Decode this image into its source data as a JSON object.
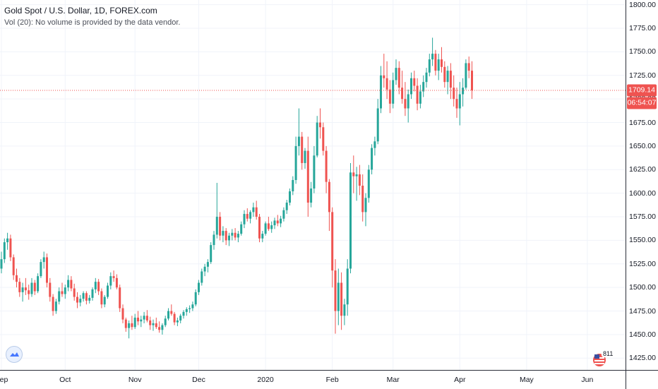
{
  "legend": {
    "title": "Gold Spot / U.S. Dollar, 1D, FOREX.com",
    "volume_note": "Vol (20): No volume is provided by the data vendor."
  },
  "price_tags": {
    "last_price": "1709.14",
    "countdown": "06:54:07"
  },
  "badge": {
    "count": "811"
  },
  "colors": {
    "up": "#26a69a",
    "down": "#ef5350",
    "grid": "#f0f3fa",
    "price_line": "#ef5350"
  },
  "icons": {
    "logo": "tradingview-cloud-icon",
    "badge": "us-flag-icon"
  },
  "chart_data": {
    "type": "candlestick",
    "title": "Gold Spot / U.S. Dollar, 1D, FOREX.com",
    "ylim": [
      1412.5,
      1805
    ],
    "yticks": [
      1425,
      1450,
      1475,
      1500,
      1525,
      1550,
      1575,
      1600,
      1625,
      1650,
      1675,
      1700,
      1725,
      1750,
      1775,
      1800
    ],
    "ytick_labels": [
      "1425.00",
      "1450.00",
      "1475.00",
      "1500.00",
      "1525.00",
      "1550.00",
      "1575.00",
      "1600.00",
      "1625.00",
      "1650.00",
      "1675.00",
      "1700.00",
      "1725.00",
      "1750.00",
      "1775.00",
      "1800.00"
    ],
    "xticks": [
      {
        "label": "Sep",
        "index": 0
      },
      {
        "label": "Oct",
        "index": 21
      },
      {
        "label": "Nov",
        "index": 44
      },
      {
        "label": "Dec",
        "index": 65
      },
      {
        "label": "2020",
        "index": 87
      },
      {
        "label": "Feb",
        "index": 109
      },
      {
        "label": "Mar",
        "index": 129
      },
      {
        "label": "Apr",
        "index": 151
      },
      {
        "label": "May",
        "index": 173
      },
      {
        "label": "Jun",
        "index": 193
      }
    ],
    "last_price": 1709.14,
    "grid": true,
    "ohlc": [
      [
        1520,
        1538,
        1515,
        1530
      ],
      [
        1530,
        1552,
        1526,
        1548
      ],
      [
        1548,
        1558,
        1540,
        1552
      ],
      [
        1552,
        1556,
        1528,
        1532
      ],
      [
        1532,
        1535,
        1508,
        1513
      ],
      [
        1513,
        1520,
        1500,
        1506
      ],
      [
        1506,
        1510,
        1490,
        1495
      ],
      [
        1495,
        1505,
        1485,
        1500
      ],
      [
        1500,
        1510,
        1492,
        1497
      ],
      [
        1497,
        1503,
        1487,
        1493
      ],
      [
        1493,
        1510,
        1490,
        1505
      ],
      [
        1505,
        1508,
        1492,
        1496
      ],
      [
        1496,
        1515,
        1494,
        1512
      ],
      [
        1512,
        1530,
        1510,
        1527
      ],
      [
        1527,
        1538,
        1520,
        1532
      ],
      [
        1532,
        1536,
        1500,
        1505
      ],
      [
        1505,
        1510,
        1485,
        1490
      ],
      [
        1490,
        1493,
        1470,
        1475
      ],
      [
        1475,
        1488,
        1472,
        1485
      ],
      [
        1485,
        1500,
        1482,
        1496
      ],
      [
        1496,
        1505,
        1490,
        1493
      ],
      [
        1493,
        1503,
        1488,
        1500
      ],
      [
        1500,
        1513,
        1496,
        1508
      ],
      [
        1508,
        1512,
        1496,
        1499
      ],
      [
        1499,
        1504,
        1486,
        1490
      ],
      [
        1490,
        1495,
        1478,
        1484
      ],
      [
        1484,
        1492,
        1480,
        1488
      ],
      [
        1488,
        1496,
        1485,
        1494
      ],
      [
        1494,
        1496,
        1482,
        1486
      ],
      [
        1486,
        1492,
        1483,
        1489
      ],
      [
        1489,
        1500,
        1486,
        1498
      ],
      [
        1498,
        1510,
        1494,
        1506
      ],
      [
        1506,
        1509,
        1492,
        1496
      ],
      [
        1496,
        1499,
        1478,
        1482
      ],
      [
        1482,
        1492,
        1479,
        1490
      ],
      [
        1490,
        1505,
        1488,
        1502
      ],
      [
        1502,
        1516,
        1498,
        1512
      ],
      [
        1512,
        1518,
        1506,
        1510
      ],
      [
        1510,
        1514,
        1498,
        1500
      ],
      [
        1500,
        1503,
        1474,
        1478
      ],
      [
        1478,
        1482,
        1462,
        1466
      ],
      [
        1466,
        1468,
        1453,
        1457
      ],
      [
        1457,
        1465,
        1446,
        1462
      ],
      [
        1462,
        1470,
        1455,
        1458
      ],
      [
        1458,
        1472,
        1456,
        1468
      ],
      [
        1468,
        1475,
        1460,
        1464
      ],
      [
        1464,
        1470,
        1458,
        1466
      ],
      [
        1466,
        1474,
        1462,
        1470
      ],
      [
        1470,
        1476,
        1463,
        1465
      ],
      [
        1465,
        1469,
        1455,
        1460
      ],
      [
        1460,
        1466,
        1454,
        1462
      ],
      [
        1462,
        1468,
        1456,
        1458
      ],
      [
        1458,
        1464,
        1452,
        1455
      ],
      [
        1455,
        1462,
        1450,
        1460
      ],
      [
        1460,
        1470,
        1458,
        1467
      ],
      [
        1467,
        1478,
        1465,
        1475
      ],
      [
        1475,
        1482,
        1470,
        1472
      ],
      [
        1472,
        1474,
        1460,
        1463
      ],
      [
        1463,
        1468,
        1459,
        1465
      ],
      [
        1465,
        1472,
        1462,
        1470
      ],
      [
        1470,
        1476,
        1467,
        1474
      ],
      [
        1474,
        1479,
        1470,
        1477
      ],
      [
        1477,
        1481,
        1473,
        1478
      ],
      [
        1478,
        1485,
        1475,
        1482
      ],
      [
        1482,
        1498,
        1480,
        1495
      ],
      [
        1495,
        1508,
        1492,
        1505
      ],
      [
        1505,
        1520,
        1502,
        1517
      ],
      [
        1517,
        1525,
        1512,
        1522
      ],
      [
        1522,
        1530,
        1516,
        1527
      ],
      [
        1527,
        1548,
        1525,
        1545
      ],
      [
        1545,
        1560,
        1540,
        1556
      ],
      [
        1556,
        1611,
        1552,
        1575
      ],
      [
        1575,
        1580,
        1550,
        1555
      ],
      [
        1555,
        1565,
        1548,
        1560
      ],
      [
        1560,
        1563,
        1545,
        1550
      ],
      [
        1550,
        1558,
        1544,
        1555
      ],
      [
        1555,
        1562,
        1550,
        1558
      ],
      [
        1558,
        1563,
        1550,
        1553
      ],
      [
        1553,
        1560,
        1548,
        1557
      ],
      [
        1557,
        1570,
        1555,
        1567
      ],
      [
        1567,
        1582,
        1563,
        1578
      ],
      [
        1578,
        1584,
        1570,
        1573
      ],
      [
        1573,
        1582,
        1568,
        1580
      ],
      [
        1580,
        1590,
        1575,
        1585
      ],
      [
        1585,
        1592,
        1572,
        1575
      ],
      [
        1575,
        1578,
        1548,
        1552
      ],
      [
        1552,
        1560,
        1548,
        1557
      ],
      [
        1557,
        1570,
        1555,
        1568
      ],
      [
        1568,
        1575,
        1560,
        1562
      ],
      [
        1562,
        1570,
        1558,
        1566
      ],
      [
        1566,
        1574,
        1562,
        1571
      ],
      [
        1571,
        1577,
        1565,
        1568
      ],
      [
        1568,
        1576,
        1564,
        1573
      ],
      [
        1573,
        1585,
        1570,
        1582
      ],
      [
        1582,
        1593,
        1578,
        1590
      ],
      [
        1590,
        1605,
        1587,
        1602
      ],
      [
        1602,
        1618,
        1598,
        1614
      ],
      [
        1614,
        1660,
        1610,
        1650
      ],
      [
        1650,
        1690,
        1640,
        1660
      ],
      [
        1660,
        1665,
        1625,
        1632
      ],
      [
        1632,
        1648,
        1626,
        1645
      ],
      [
        1645,
        1660,
        1575,
        1590
      ],
      [
        1590,
        1612,
        1585,
        1605
      ],
      [
        1605,
        1650,
        1600,
        1640
      ],
      [
        1640,
        1682,
        1638,
        1675
      ],
      [
        1675,
        1690,
        1658,
        1670
      ],
      [
        1670,
        1675,
        1640,
        1645
      ],
      [
        1645,
        1650,
        1600,
        1612
      ],
      [
        1612,
        1615,
        1560,
        1580
      ],
      [
        1580,
        1585,
        1500,
        1518
      ],
      [
        1518,
        1530,
        1451,
        1475
      ],
      [
        1475,
        1520,
        1460,
        1505
      ],
      [
        1505,
        1516,
        1455,
        1470
      ],
      [
        1470,
        1488,
        1460,
        1482
      ],
      [
        1482,
        1530,
        1470,
        1520
      ],
      [
        1520,
        1632,
        1515,
        1622
      ],
      [
        1622,
        1640,
        1600,
        1618
      ],
      [
        1618,
        1628,
        1592,
        1620
      ],
      [
        1620,
        1630,
        1598,
        1608
      ],
      [
        1608,
        1620,
        1570,
        1580
      ],
      [
        1580,
        1600,
        1565,
        1595
      ],
      [
        1595,
        1630,
        1590,
        1625
      ],
      [
        1625,
        1652,
        1620,
        1648
      ],
      [
        1648,
        1660,
        1640,
        1655
      ],
      [
        1655,
        1700,
        1652,
        1690
      ],
      [
        1690,
        1735,
        1685,
        1725
      ],
      [
        1725,
        1748,
        1712,
        1722
      ],
      [
        1722,
        1740,
        1700,
        1710
      ],
      [
        1710,
        1720,
        1685,
        1695
      ],
      [
        1695,
        1728,
        1690,
        1720
      ],
      [
        1720,
        1742,
        1715,
        1733
      ],
      [
        1733,
        1740,
        1705,
        1712
      ],
      [
        1712,
        1730,
        1695,
        1700
      ],
      [
        1700,
        1718,
        1682,
        1690
      ],
      [
        1690,
        1710,
        1675,
        1705
      ],
      [
        1705,
        1728,
        1700,
        1722
      ],
      [
        1722,
        1730,
        1708,
        1714
      ],
      [
        1714,
        1722,
        1688,
        1695
      ],
      [
        1695,
        1715,
        1690,
        1708
      ],
      [
        1708,
        1725,
        1702,
        1718
      ],
      [
        1718,
        1733,
        1712,
        1728
      ],
      [
        1728,
        1748,
        1724,
        1742
      ],
      [
        1742,
        1765,
        1735,
        1748
      ],
      [
        1748,
        1752,
        1725,
        1730
      ],
      [
        1730,
        1748,
        1720,
        1742
      ],
      [
        1742,
        1755,
        1728,
        1734
      ],
      [
        1734,
        1740,
        1712,
        1718
      ],
      [
        1718,
        1735,
        1705,
        1730
      ],
      [
        1730,
        1738,
        1700,
        1712
      ],
      [
        1712,
        1725,
        1692,
        1700
      ],
      [
        1700,
        1712,
        1680,
        1690
      ],
      [
        1690,
        1718,
        1672,
        1705
      ],
      [
        1705,
        1722,
        1692,
        1712
      ],
      [
        1712,
        1742,
        1710,
        1738
      ],
      [
        1738,
        1745,
        1722,
        1730
      ],
      [
        1730,
        1740,
        1700,
        1709.14
      ]
    ]
  }
}
